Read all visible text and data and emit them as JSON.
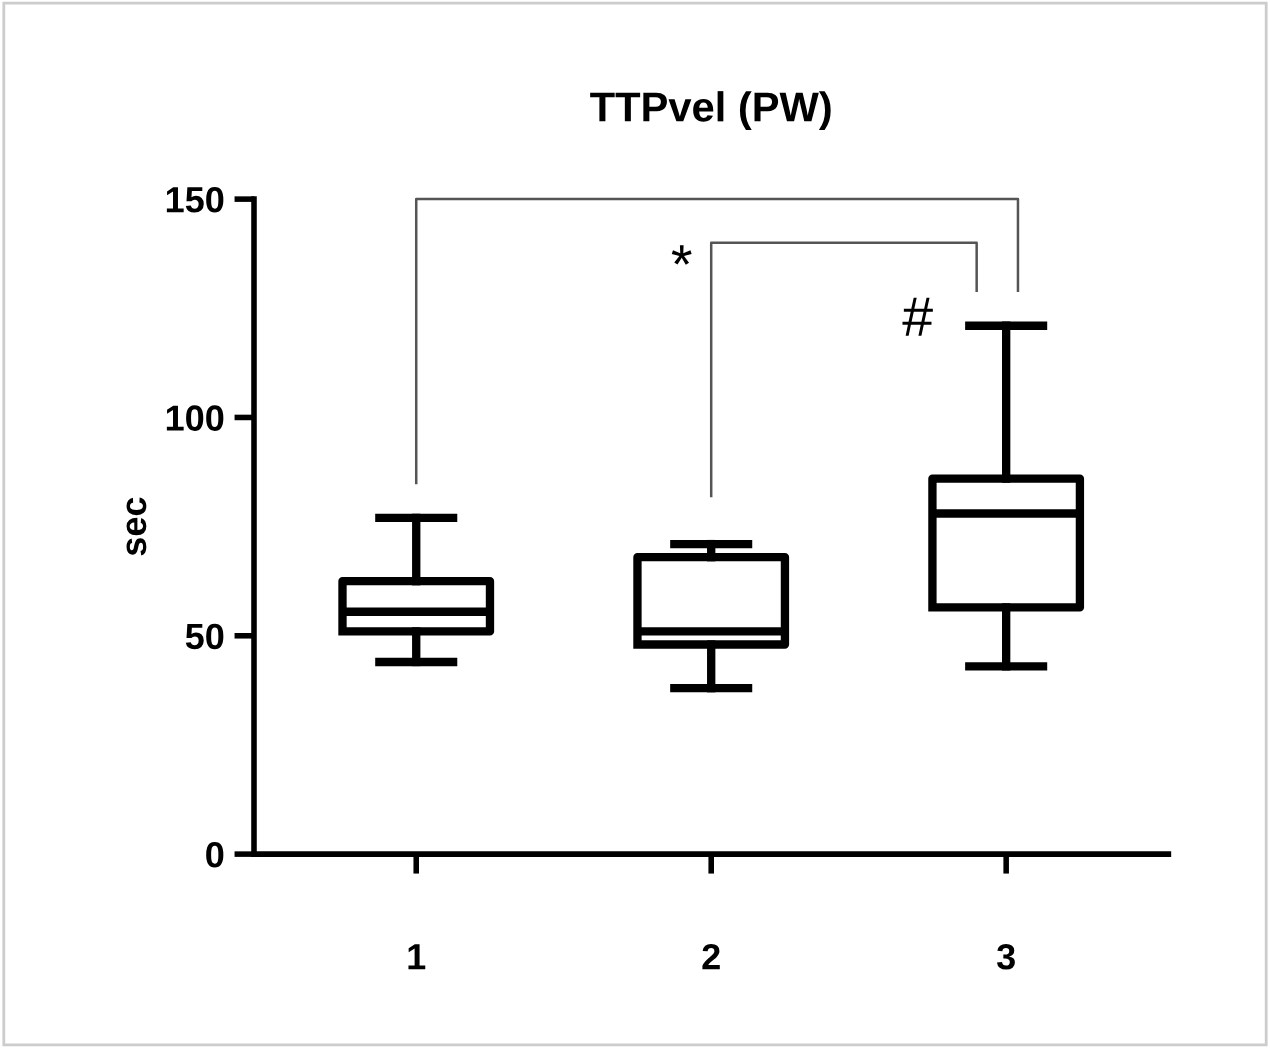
{
  "chart_data": {
    "type": "box",
    "title": "TTPvel (PW)",
    "ylabel": "sec",
    "categories": [
      "1",
      "2",
      "3"
    ],
    "ylim": [
      0,
      150
    ],
    "yticks": [
      0,
      50,
      100,
      150
    ],
    "grid": false,
    "color": "#000000",
    "boxes": [
      {
        "low": 44,
        "q1": 51,
        "median": 55.5,
        "q3": 62.5,
        "high": 77
      },
      {
        "low": 38,
        "q1": 48,
        "median": 51,
        "q3": 68,
        "high": 71
      },
      {
        "low": 43,
        "q1": 56.5,
        "median": 78,
        "q3": 86,
        "high": 121
      }
    ],
    "annotations": [
      "*",
      "#"
    ]
  }
}
